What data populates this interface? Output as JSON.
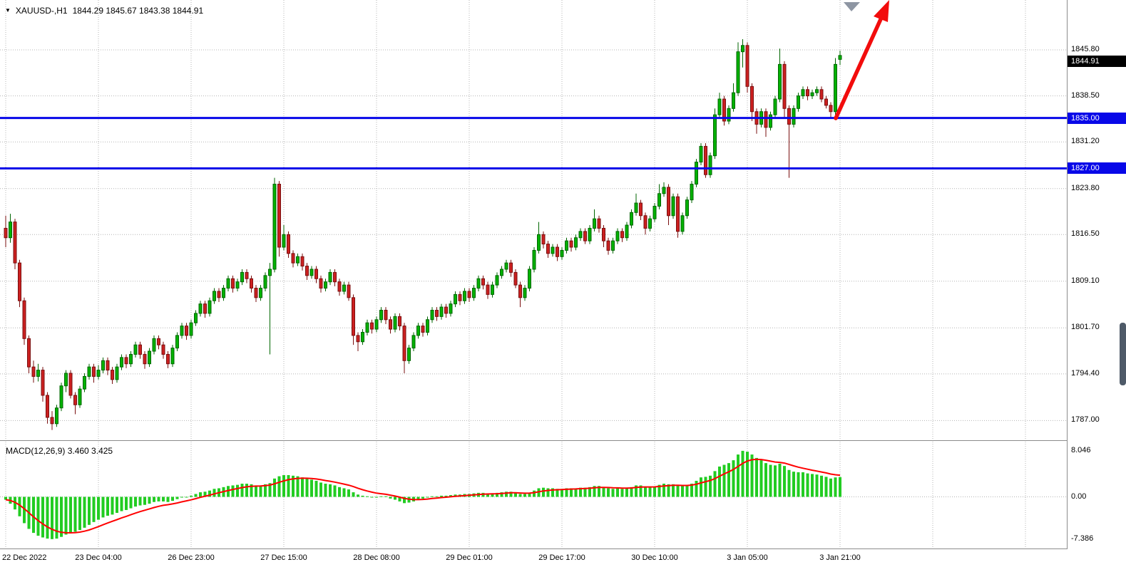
{
  "window": {
    "symbol_timeframe": "XAUUSD-,H1",
    "ohlc_text": "1844.29 1845.67 1843.38 1844.91"
  },
  "colors": {
    "background": "#ffffff",
    "grid": "#b4b4b4",
    "bull_body": "#00b200",
    "bull_edge": "#006600",
    "bear_body": "#cc2020",
    "bear_edge": "#7a0f0f",
    "support_line": "#0808e8",
    "current_tag_bg": "#000000",
    "tag_text": "#ffffff",
    "macd_bar": "#22cc22",
    "macd_signal": "#ff0000",
    "arrow": "#f20c0c",
    "marker": "#8e96a3",
    "separator": "#8c8c8c"
  },
  "chart_data": {
    "type": "candlestick",
    "symbol": "XAUUSD-",
    "timeframe": "H1",
    "price_axis": {
      "ticks": [
        1845.8,
        1838.5,
        1831.2,
        1823.8,
        1816.5,
        1809.1,
        1801.7,
        1794.4,
        1787.0
      ],
      "current_price": 1844.91,
      "current_price_label": "1844.91"
    },
    "time_axis": {
      "labels": [
        "22 Dec 2022",
        "23 Dec 04:00",
        "26 Dec 23:00",
        "27 Dec 15:00",
        "28 Dec 08:00",
        "29 Dec 01:00",
        "29 Dec 17:00",
        "30 Dec 10:00",
        "3 Jan 05:00",
        "3 Jan 21:00"
      ],
      "bars_per_label": 20
    },
    "horizontal_lines": [
      {
        "price": 1835.0,
        "label": "1835.00"
      },
      {
        "price": 1827.0,
        "label": "1827.00"
      }
    ],
    "annotations": {
      "trend_arrow": "red up-right projection arrow from 1835 support line",
      "top_marker": "gray down triangle marker at top edge"
    },
    "candles": [
      [
        1817.5,
        1819.5,
        1814.5,
        1816.0
      ],
      [
        1816.0,
        1819.8,
        1815.2,
        1818.5
      ],
      [
        1818.5,
        1819.0,
        1811.0,
        1812.0
      ],
      [
        1812.0,
        1812.5,
        1805.0,
        1806.0
      ],
      [
        1806.0,
        1806.5,
        1799.0,
        1800.0
      ],
      [
        1800.0,
        1800.5,
        1794.5,
        1795.5
      ],
      [
        1795.5,
        1796.5,
        1793.0,
        1794.0
      ],
      [
        1794.0,
        1796.0,
        1793.2,
        1795.0
      ],
      [
        1795.0,
        1795.5,
        1790.0,
        1791.0
      ],
      [
        1791.0,
        1791.5,
        1786.5,
        1787.5
      ],
      [
        1787.5,
        1788.5,
        1785.5,
        1786.5
      ],
      [
        1786.5,
        1789.5,
        1786.0,
        1789.0
      ],
      [
        1789.0,
        1793.0,
        1788.5,
        1792.5
      ],
      [
        1792.5,
        1795.0,
        1791.5,
        1794.5
      ],
      [
        1794.5,
        1795.0,
        1790.5,
        1791.0
      ],
      [
        1791.0,
        1791.5,
        1788.0,
        1789.5
      ],
      [
        1789.5,
        1792.5,
        1789.0,
        1792.0
      ],
      [
        1792.0,
        1794.5,
        1791.5,
        1794.0
      ],
      [
        1794.0,
        1796.0,
        1793.5,
        1795.5
      ],
      [
        1795.5,
        1796.0,
        1793.0,
        1794.0
      ],
      [
        1794.0,
        1795.8,
        1793.5,
        1795.0
      ],
      [
        1795.0,
        1797.0,
        1794.5,
        1796.5
      ],
      [
        1796.5,
        1797.0,
        1794.2,
        1795.0
      ],
      [
        1795.0,
        1795.5,
        1792.8,
        1793.5
      ],
      [
        1793.5,
        1796.0,
        1793.0,
        1795.5
      ],
      [
        1795.5,
        1797.5,
        1795.0,
        1797.0
      ],
      [
        1797.0,
        1797.5,
        1795.3,
        1796.0
      ],
      [
        1796.0,
        1798.0,
        1795.5,
        1797.5
      ],
      [
        1797.5,
        1799.5,
        1797.0,
        1799.0
      ],
      [
        1799.0,
        1799.5,
        1796.8,
        1797.5
      ],
      [
        1797.5,
        1798.0,
        1795.2,
        1796.0
      ],
      [
        1796.0,
        1798.5,
        1795.5,
        1798.0
      ],
      [
        1798.0,
        1800.5,
        1797.5,
        1800.0
      ],
      [
        1800.0,
        1800.5,
        1798.3,
        1799.0
      ],
      [
        1799.0,
        1799.5,
        1796.8,
        1797.5
      ],
      [
        1797.5,
        1798.0,
        1795.3,
        1796.0
      ],
      [
        1796.0,
        1799.0,
        1795.5,
        1798.5
      ],
      [
        1798.5,
        1801.0,
        1798.0,
        1800.5
      ],
      [
        1800.5,
        1802.5,
        1800.0,
        1802.0
      ],
      [
        1802.0,
        1802.5,
        1799.8,
        1800.5
      ],
      [
        1800.5,
        1803.0,
        1800.0,
        1802.5
      ],
      [
        1802.5,
        1804.5,
        1802.0,
        1804.0
      ],
      [
        1804.0,
        1806.0,
        1803.5,
        1805.5
      ],
      [
        1805.5,
        1806.0,
        1803.3,
        1804.0
      ],
      [
        1804.0,
        1806.5,
        1803.5,
        1806.0
      ],
      [
        1806.0,
        1808.0,
        1805.5,
        1807.5
      ],
      [
        1807.5,
        1808.0,
        1805.8,
        1806.5
      ],
      [
        1806.5,
        1808.5,
        1806.0,
        1808.0
      ],
      [
        1808.0,
        1810.0,
        1807.5,
        1809.5
      ],
      [
        1809.5,
        1810.0,
        1807.3,
        1808.0
      ],
      [
        1808.0,
        1809.5,
        1807.5,
        1809.0
      ],
      [
        1809.0,
        1811.0,
        1808.5,
        1810.5
      ],
      [
        1810.5,
        1811.0,
        1808.8,
        1809.5
      ],
      [
        1809.5,
        1810.0,
        1807.3,
        1808.0
      ],
      [
        1808.0,
        1808.5,
        1805.8,
        1806.5
      ],
      [
        1806.5,
        1808.5,
        1806.0,
        1808.0
      ],
      [
        1808.0,
        1810.5,
        1807.5,
        1810.0
      ],
      [
        1810.0,
        1812.0,
        1797.5,
        1811.0
      ],
      [
        1811.0,
        1825.5,
        1810.5,
        1824.5
      ],
      [
        1824.5,
        1825.0,
        1813.0,
        1814.5
      ],
      [
        1814.5,
        1818.0,
        1814.0,
        1816.5
      ],
      [
        1816.5,
        1817.0,
        1812.8,
        1813.5
      ],
      [
        1813.5,
        1814.0,
        1811.3,
        1812.0
      ],
      [
        1812.0,
        1813.5,
        1811.5,
        1813.0
      ],
      [
        1813.0,
        1813.5,
        1810.8,
        1811.5
      ],
      [
        1811.5,
        1812.0,
        1809.3,
        1810.0
      ],
      [
        1810.0,
        1811.5,
        1809.5,
        1811.0
      ],
      [
        1811.0,
        1811.5,
        1808.8,
        1809.5
      ],
      [
        1809.5,
        1810.0,
        1807.3,
        1808.0
      ],
      [
        1808.0,
        1809.5,
        1807.5,
        1809.0
      ],
      [
        1809.0,
        1811.0,
        1808.5,
        1810.5
      ],
      [
        1810.5,
        1811.0,
        1808.3,
        1809.0
      ],
      [
        1809.0,
        1809.5,
        1806.8,
        1807.5
      ],
      [
        1807.5,
        1809.0,
        1807.0,
        1808.5
      ],
      [
        1808.5,
        1809.0,
        1806.0,
        1806.5
      ],
      [
        1806.5,
        1807.0,
        1799.0,
        1800.5
      ],
      [
        1800.5,
        1801.0,
        1798.0,
        1799.5
      ],
      [
        1799.5,
        1801.5,
        1799.0,
        1801.0
      ],
      [
        1801.0,
        1803.0,
        1800.5,
        1802.5
      ],
      [
        1802.5,
        1803.0,
        1800.8,
        1801.5
      ],
      [
        1801.5,
        1803.5,
        1801.0,
        1803.0
      ],
      [
        1803.0,
        1805.0,
        1802.5,
        1804.5
      ],
      [
        1804.5,
        1805.0,
        1802.3,
        1803.0
      ],
      [
        1803.0,
        1803.5,
        1800.8,
        1801.5
      ],
      [
        1801.5,
        1804.0,
        1801.0,
        1803.5
      ],
      [
        1803.5,
        1804.0,
        1801.3,
        1802.0
      ],
      [
        1802.0,
        1802.5,
        1794.5,
        1796.5
      ],
      [
        1796.5,
        1799.0,
        1796.0,
        1798.5
      ],
      [
        1798.5,
        1801.0,
        1798.0,
        1800.5
      ],
      [
        1800.5,
        1802.5,
        1800.0,
        1802.0
      ],
      [
        1802.0,
        1802.5,
        1800.3,
        1801.0
      ],
      [
        1801.0,
        1803.5,
        1800.5,
        1803.0
      ],
      [
        1803.0,
        1805.0,
        1802.5,
        1804.5
      ],
      [
        1804.5,
        1805.0,
        1802.8,
        1803.5
      ],
      [
        1803.5,
        1805.5,
        1803.0,
        1805.0
      ],
      [
        1805.0,
        1805.5,
        1803.3,
        1804.0
      ],
      [
        1804.0,
        1806.0,
        1803.5,
        1805.5
      ],
      [
        1805.5,
        1807.5,
        1805.0,
        1807.0
      ],
      [
        1807.0,
        1807.5,
        1805.3,
        1806.0
      ],
      [
        1806.0,
        1808.0,
        1805.5,
        1807.5
      ],
      [
        1807.5,
        1808.0,
        1805.8,
        1806.5
      ],
      [
        1806.5,
        1808.5,
        1806.0,
        1808.0
      ],
      [
        1808.0,
        1810.0,
        1807.5,
        1809.5
      ],
      [
        1809.5,
        1810.0,
        1807.8,
        1808.5
      ],
      [
        1808.5,
        1809.0,
        1806.3,
        1807.0
      ],
      [
        1807.0,
        1809.0,
        1806.5,
        1808.5
      ],
      [
        1808.5,
        1810.5,
        1808.0,
        1810.0
      ],
      [
        1810.0,
        1811.5,
        1809.5,
        1811.0
      ],
      [
        1811.0,
        1812.5,
        1810.5,
        1812.0
      ],
      [
        1812.0,
        1812.5,
        1809.8,
        1810.5
      ],
      [
        1810.5,
        1811.0,
        1808.0,
        1808.5
      ],
      [
        1808.5,
        1809.0,
        1805.0,
        1806.5
      ],
      [
        1806.5,
        1808.5,
        1806.0,
        1808.0
      ],
      [
        1808.0,
        1811.5,
        1807.5,
        1811.0
      ],
      [
        1811.0,
        1814.5,
        1810.5,
        1814.0
      ],
      [
        1814.0,
        1818.5,
        1813.5,
        1816.5
      ],
      [
        1816.5,
        1817.0,
        1814.3,
        1815.0
      ],
      [
        1815.0,
        1815.5,
        1812.8,
        1813.5
      ],
      [
        1813.5,
        1815.0,
        1813.0,
        1814.5
      ],
      [
        1814.5,
        1815.0,
        1812.3,
        1813.0
      ],
      [
        1813.0,
        1814.5,
        1812.5,
        1814.0
      ],
      [
        1814.0,
        1816.0,
        1813.5,
        1815.5
      ],
      [
        1815.5,
        1816.0,
        1813.8,
        1814.5
      ],
      [
        1814.5,
        1816.5,
        1814.0,
        1816.0
      ],
      [
        1816.0,
        1817.5,
        1815.5,
        1817.0
      ],
      [
        1817.0,
        1817.5,
        1815.0,
        1815.5
      ],
      [
        1815.5,
        1818.0,
        1815.0,
        1817.5
      ],
      [
        1817.5,
        1820.5,
        1817.0,
        1819.0
      ],
      [
        1819.0,
        1819.5,
        1816.8,
        1817.5
      ],
      [
        1817.5,
        1818.0,
        1814.5,
        1815.5
      ],
      [
        1815.5,
        1816.0,
        1813.3,
        1814.0
      ],
      [
        1814.0,
        1816.0,
        1813.5,
        1815.5
      ],
      [
        1815.5,
        1817.5,
        1815.0,
        1817.0
      ],
      [
        1817.0,
        1817.5,
        1815.3,
        1816.0
      ],
      [
        1816.0,
        1818.5,
        1815.5,
        1818.0
      ],
      [
        1818.0,
        1820.5,
        1817.5,
        1820.0
      ],
      [
        1820.0,
        1823.0,
        1819.5,
        1821.5
      ],
      [
        1821.5,
        1822.0,
        1818.8,
        1819.5
      ],
      [
        1819.5,
        1820.0,
        1816.5,
        1817.5
      ],
      [
        1817.5,
        1819.5,
        1817.0,
        1819.0
      ],
      [
        1819.0,
        1821.5,
        1818.5,
        1821.0
      ],
      [
        1821.0,
        1824.5,
        1820.5,
        1823.0
      ],
      [
        1823.0,
        1824.8,
        1822.5,
        1824.0
      ],
      [
        1824.0,
        1824.5,
        1818.0,
        1819.5
      ],
      [
        1819.5,
        1823.0,
        1819.0,
        1822.5
      ],
      [
        1822.5,
        1823.0,
        1816.0,
        1817.0
      ],
      [
        1817.0,
        1820.0,
        1816.5,
        1819.5
      ],
      [
        1819.5,
        1822.5,
        1819.0,
        1822.0
      ],
      [
        1822.0,
        1825.0,
        1821.5,
        1824.5
      ],
      [
        1824.5,
        1828.5,
        1824.0,
        1828.0
      ],
      [
        1828.0,
        1831.0,
        1827.5,
        1830.5
      ],
      [
        1830.5,
        1831.0,
        1825.5,
        1826.0
      ],
      [
        1826.0,
        1829.5,
        1825.5,
        1829.0
      ],
      [
        1829.0,
        1836.5,
        1828.5,
        1835.5
      ],
      [
        1835.5,
        1839.0,
        1835.0,
        1838.0
      ],
      [
        1838.0,
        1838.5,
        1833.8,
        1834.5
      ],
      [
        1834.5,
        1837.0,
        1834.0,
        1836.5
      ],
      [
        1836.5,
        1840.5,
        1836.0,
        1839.0
      ],
      [
        1839.0,
        1847.0,
        1838.5,
        1845.5
      ],
      [
        1845.5,
        1847.5,
        1843.0,
        1846.5
      ],
      [
        1846.5,
        1847.0,
        1839.0,
        1840.0
      ],
      [
        1840.0,
        1840.5,
        1834.5,
        1836.0
      ],
      [
        1836.0,
        1836.5,
        1832.5,
        1834.0
      ],
      [
        1834.0,
        1836.5,
        1833.5,
        1836.0
      ],
      [
        1836.0,
        1836.5,
        1832.0,
        1833.5
      ],
      [
        1833.5,
        1836.0,
        1833.0,
        1835.5
      ],
      [
        1835.5,
        1838.5,
        1835.0,
        1838.0
      ],
      [
        1838.0,
        1846.0,
        1837.5,
        1843.5
      ],
      [
        1843.5,
        1844.0,
        1835.0,
        1836.5
      ],
      [
        1836.5,
        1837.0,
        1825.5,
        1834.0
      ],
      [
        1834.0,
        1837.0,
        1833.5,
        1836.5
      ],
      [
        1836.5,
        1839.0,
        1836.0,
        1838.5
      ],
      [
        1838.5,
        1840.0,
        1838.0,
        1839.5
      ],
      [
        1839.5,
        1840.0,
        1837.8,
        1838.5
      ],
      [
        1838.5,
        1839.5,
        1838.0,
        1839.0
      ],
      [
        1839.0,
        1840.0,
        1838.5,
        1839.5
      ],
      [
        1839.5,
        1840.0,
        1837.5,
        1838.0
      ],
      [
        1838.0,
        1838.5,
        1836.5,
        1837.0
      ],
      [
        1837.0,
        1837.5,
        1835.0,
        1836.0
      ],
      [
        1836.0,
        1844.5,
        1835.5,
        1843.5
      ],
      [
        1844.29,
        1845.67,
        1843.38,
        1844.91
      ]
    ],
    "macd": {
      "label": "MACD(12,26,9) 3.460 3.425",
      "fast": 12,
      "slow": 26,
      "signal_period": 9,
      "value": 3.46,
      "signal_value": 3.425,
      "axis_ticks": [
        "8.046",
        "0.00",
        "-7.386"
      ],
      "histogram": [
        -0.5,
        -1.2,
        -2.2,
        -3.4,
        -4.6,
        -5.6,
        -6.3,
        -6.8,
        -7.1,
        -7.3,
        -7.39,
        -7.3,
        -7.0,
        -6.6,
        -6.3,
        -6.1,
        -5.8,
        -5.4,
        -4.9,
        -4.4,
        -4.0,
        -3.6,
        -3.3,
        -3.1,
        -2.8,
        -2.5,
        -2.3,
        -2.0,
        -1.7,
        -1.5,
        -1.4,
        -1.2,
        -0.9,
        -0.8,
        -0.8,
        -0.9,
        -0.7,
        -0.4,
        -0.1,
        0.0,
        0.2,
        0.5,
        0.8,
        0.9,
        1.1,
        1.4,
        1.5,
        1.7,
        1.9,
        2.0,
        2.1,
        2.3,
        2.3,
        2.2,
        2.0,
        2.0,
        2.2,
        2.4,
        3.2,
        3.6,
        3.8,
        3.8,
        3.7,
        3.6,
        3.4,
        3.2,
        3.0,
        2.8,
        2.5,
        2.3,
        2.2,
        2.0,
        1.7,
        1.5,
        1.3,
        0.8,
        0.4,
        0.2,
        0.1,
        0.0,
        0.0,
        0.1,
        0.1,
        -0.3,
        -0.5,
        -0.8,
        -1.1,
        -1.0,
        -0.8,
        -0.5,
        -0.3,
        -0.1,
        0.1,
        0.1,
        0.2,
        0.2,
        0.3,
        0.4,
        0.4,
        0.5,
        0.5,
        0.6,
        0.7,
        0.7,
        0.6,
        0.6,
        0.7,
        0.8,
        0.9,
        0.9,
        0.7,
        0.5,
        0.5,
        0.7,
        1.1,
        1.5,
        1.6,
        1.5,
        1.5,
        1.4,
        1.4,
        1.5,
        1.5,
        1.5,
        1.6,
        1.6,
        1.7,
        1.9,
        1.9,
        1.7,
        1.5,
        1.4,
        1.5,
        1.4,
        1.5,
        1.7,
        2.0,
        2.0,
        1.8,
        1.7,
        1.8,
        2.1,
        2.3,
        2.2,
        2.2,
        2.0,
        1.9,
        2.0,
        2.3,
        2.8,
        3.4,
        3.5,
        3.7,
        4.5,
        5.3,
        5.6,
        5.9,
        6.4,
        7.4,
        8.046,
        7.9,
        7.4,
        6.8,
        6.4,
        5.9,
        5.6,
        5.5,
        5.8,
        5.4,
        4.7,
        4.4,
        4.3,
        4.3,
        4.1,
        4.0,
        3.9,
        3.7,
        3.5,
        3.2,
        3.4,
        3.46
      ]
    }
  }
}
